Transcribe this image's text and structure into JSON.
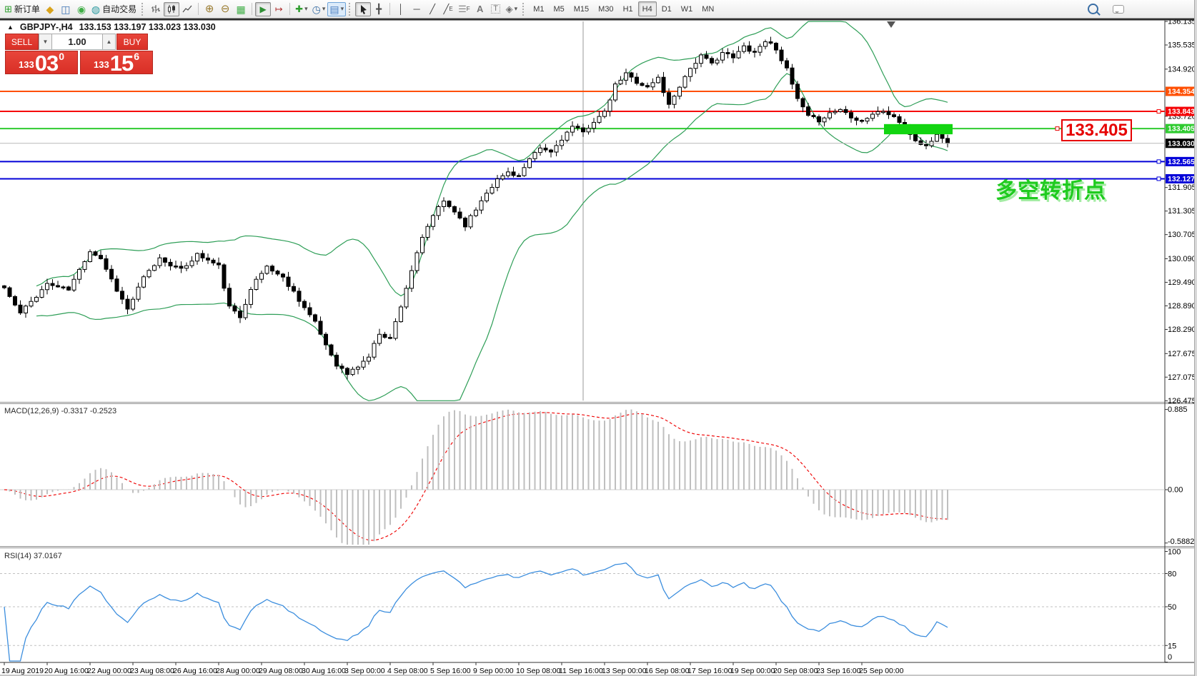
{
  "toolbar": {
    "new_order_label": "新订单",
    "autotrading_label": "自动交易",
    "timeframes": [
      "M1",
      "M5",
      "M15",
      "M30",
      "H1",
      "H4",
      "D1",
      "W1",
      "MN"
    ],
    "active_timeframe": "H4",
    "icons": {
      "new_order": "⊞",
      "quick_trade": "◆",
      "chart_window": "◫",
      "signals": "◉",
      "autotrading": "◍",
      "zoom_in": "⊕",
      "zoom_out": "⊖",
      "tile_windows": "▦",
      "auto_scroll": "▶",
      "chart_shift": "↦",
      "indicators": "✚",
      "periods": "◷",
      "templates": "▤",
      "caret": "▾",
      "crosshair": "╋",
      "vertical_line": "│",
      "horizontal_line": "─",
      "trendline": "╱",
      "channel": "╱",
      "channel_sub": "E",
      "fibonacci": "☰",
      "fibonacci_sub": "F",
      "text": "A",
      "text_label": "T",
      "arrows": "◈",
      "collapse": "▲"
    }
  },
  "quote_panel": {
    "symbol": "GBPJPY-,H4",
    "ohlc": "133.153 133.197 133.023 133.030",
    "sell_label": "SELL",
    "buy_label": "BUY",
    "volume": "1.00",
    "sell_price": {
      "prefix": "133",
      "big": "03",
      "sup": "0"
    },
    "buy_price": {
      "prefix": "133",
      "big": "15",
      "sup": "6"
    }
  },
  "annotations": {
    "price_label": "133.405",
    "note_text": "多空转折点"
  },
  "chart_data": [
    {
      "type": "candlestick",
      "title": "GBPJPY-,H4",
      "ohlc_header": [
        133.153,
        133.197,
        133.023,
        133.03
      ],
      "indicator": "Bollinger Bands (20,2)",
      "band_color": "#2e9e57",
      "ylim": [
        126.475,
        136.135
      ],
      "y_ticks": [
        136.135,
        135.535,
        134.92,
        133.72,
        131.905,
        131.305,
        130.705,
        130.09,
        129.49,
        128.89,
        128.29,
        127.675,
        127.075,
        126.475
      ],
      "x_labels": [
        "19 Aug 2019",
        "20 Aug 16:00",
        "22 Aug 00:00",
        "23 Aug 08:00",
        "26 Aug 16:00",
        "28 Aug 00:00",
        "29 Aug 08:00",
        "30 Aug 16:00",
        "3 Sep 00:00",
        "4 Sep 08:00",
        "5 Sep 16:00",
        "9 Sep 00:00",
        "10 Sep 08:00",
        "11 Sep 16:00",
        "13 Sep 00:00",
        "16 Sep 08:00",
        "17 Sep 16:00",
        "19 Sep 00:00",
        "20 Sep 08:00",
        "23 Sep 16:00",
        "25 Sep 00:00"
      ],
      "candles_per_label": 8,
      "close_keypoints": [
        [
          0,
          129.35
        ],
        [
          2,
          128.9
        ],
        [
          3,
          128.7
        ],
        [
          5,
          129.0
        ],
        [
          8,
          129.45
        ],
        [
          12,
          129.3
        ],
        [
          16,
          130.3
        ],
        [
          18,
          130.1
        ],
        [
          21,
          129.3
        ],
        [
          23,
          128.8
        ],
        [
          26,
          129.6
        ],
        [
          29,
          130.1
        ],
        [
          33,
          129.8
        ],
        [
          36,
          130.2
        ],
        [
          40,
          129.9
        ],
        [
          42,
          128.85
        ],
        [
          44,
          128.6
        ],
        [
          46,
          129.35
        ],
        [
          49,
          129.9
        ],
        [
          52,
          129.6
        ],
        [
          54,
          129.25
        ],
        [
          56,
          128.85
        ],
        [
          58,
          128.45
        ],
        [
          60,
          127.9
        ],
        [
          62,
          127.4
        ],
        [
          64,
          127.15
        ],
        [
          66,
          127.35
        ],
        [
          68,
          127.6
        ],
        [
          70,
          128.2
        ],
        [
          72,
          128.05
        ],
        [
          74,
          128.9
        ],
        [
          76,
          129.8
        ],
        [
          78,
          130.6
        ],
        [
          80,
          131.2
        ],
        [
          82,
          131.55
        ],
        [
          84,
          131.3
        ],
        [
          86,
          130.95
        ],
        [
          88,
          131.35
        ],
        [
          90,
          131.8
        ],
        [
          92,
          132.1
        ],
        [
          94,
          132.3
        ],
        [
          96,
          132.2
        ],
        [
          98,
          132.6
        ],
        [
          100,
          132.9
        ],
        [
          102,
          132.8
        ],
        [
          104,
          133.15
        ],
        [
          106,
          133.45
        ],
        [
          108,
          133.3
        ],
        [
          110,
          133.6
        ],
        [
          112,
          133.8
        ],
        [
          114,
          134.5
        ],
        [
          116,
          134.8
        ],
        [
          118,
          134.6
        ],
        [
          120,
          134.45
        ],
        [
          122,
          134.7
        ],
        [
          124,
          134.0
        ],
        [
          126,
          134.5
        ],
        [
          128,
          134.95
        ],
        [
          130,
          135.25
        ],
        [
          132,
          135.05
        ],
        [
          134,
          135.35
        ],
        [
          136,
          135.2
        ],
        [
          138,
          135.5
        ],
        [
          140,
          135.35
        ],
        [
          142,
          135.65
        ],
        [
          144,
          135.45
        ],
        [
          146,
          134.9
        ],
        [
          148,
          134.15
        ],
        [
          150,
          133.7
        ],
        [
          152,
          133.62
        ],
        [
          154,
          133.8
        ],
        [
          156,
          133.9
        ],
        [
          158,
          133.72
        ],
        [
          160,
          133.6
        ],
        [
          162,
          133.78
        ],
        [
          164,
          133.85
        ],
        [
          166,
          133.7
        ],
        [
          168,
          133.45
        ],
        [
          170,
          133.1
        ],
        [
          172,
          132.95
        ],
        [
          174,
          133.25
        ],
        [
          176,
          133.03
        ]
      ],
      "horizontal_lines": [
        {
          "price": 134.354,
          "color": "#ff4f02",
          "badge": "134.354",
          "handle": false
        },
        {
          "price": 133.843,
          "color": "#f50406",
          "badge": "133.843",
          "handle": true,
          "handle_color": "#f50406"
        },
        {
          "price": 133.405,
          "color": "#2fcb30",
          "badge": "133.405",
          "handle": true,
          "handle_color": "#e60000",
          "handle_x": 1477
        },
        {
          "price": 132.565,
          "color": "#0301d8",
          "badge": "132.565",
          "handle": true,
          "handle_color": "#0301d8"
        },
        {
          "price": 132.127,
          "color": "#0301d8",
          "badge": "132.127",
          "handle": true,
          "handle_color": "#0301d8"
        }
      ],
      "current_price": {
        "value": 133.03,
        "badge": "133.030",
        "line_color": "#b9b9b9"
      },
      "highlight_rect": {
        "price_top": 133.52,
        "price_bottom": 133.26,
        "color": "#12d511"
      },
      "vertical_line_index": 108
    },
    {
      "type": "bar",
      "name": "MACD(12,26,9)",
      "label_values": "-0.3317 -0.2523",
      "params": [
        12,
        26,
        9
      ],
      "ylim": [
        -0.5882,
        0.885
      ],
      "y_ticks": [
        0.885,
        0.0,
        -0.5882
      ],
      "y_tick_labels": [
        "0.885",
        "0.00",
        "-0.5882"
      ],
      "histogram_color": "#bfbfbf",
      "signal_color": "#ef0d0d",
      "derived_from": "close series, EMA 12/26 minus, signal EMA 9"
    },
    {
      "type": "line",
      "name": "RSI(14)",
      "value": "37.0167",
      "levels": [
        80,
        50,
        15
      ],
      "ylim": [
        0,
        100
      ],
      "y_ticks": [
        100,
        80,
        50,
        15,
        0
      ],
      "line_color": "#3c8ede",
      "level_color": "#c0c0c0"
    }
  ]
}
